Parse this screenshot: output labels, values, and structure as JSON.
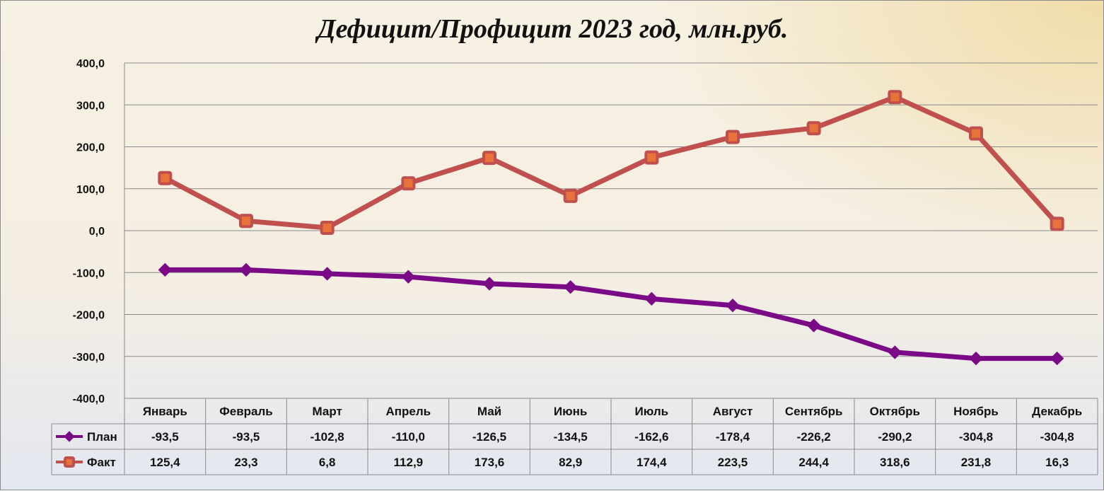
{
  "chart_data": {
    "type": "line",
    "title": "Дефицит/Профицит 2023 год, млн.руб.",
    "categories": [
      "Январь",
      "Февраль",
      "Март",
      "Апрель",
      "Май",
      "Июнь",
      "Июль",
      "Август",
      "Сентябрь",
      "Октябрь",
      "Ноябрь",
      "Декабрь"
    ],
    "series": [
      {
        "name": "План",
        "values": [
          -93.5,
          -93.5,
          -102.8,
          -110.0,
          -126.5,
          -134.5,
          -162.6,
          -178.4,
          -226.2,
          -290.2,
          -304.8,
          -304.8
        ],
        "labels": [
          "-93,5",
          "-93,5",
          "-102,8",
          "-110,0",
          "-126,5",
          "-134,5",
          "-162,6",
          "-178,4",
          "-226,2",
          "-290,2",
          "-304,8",
          "-304,8"
        ],
        "color": "#7b0a86",
        "marker": "diamond"
      },
      {
        "name": "Факт",
        "values": [
          125.4,
          23.3,
          6.8,
          112.9,
          173.6,
          82.9,
          174.4,
          223.5,
          244.4,
          318.6,
          231.8,
          16.3
        ],
        "labels": [
          "125,4",
          "23,3",
          "6,8",
          "112,9",
          "173,6",
          "82,9",
          "174,4",
          "223,5",
          "244,4",
          "318,6",
          "231,8",
          "16,3"
        ],
        "color": "#c0504d",
        "marker": "square"
      }
    ],
    "yticks": [
      400,
      300,
      200,
      100,
      0,
      -100,
      -200,
      -300,
      -400
    ],
    "ytick_labels": [
      "400,0",
      "300,0",
      "200,0",
      "100,0",
      "0,0",
      "-100,0",
      "-200,0",
      "-300,0",
      "-400,0"
    ],
    "ylim": [
      -400,
      400
    ],
    "grid": true,
    "legend": "data-table"
  }
}
